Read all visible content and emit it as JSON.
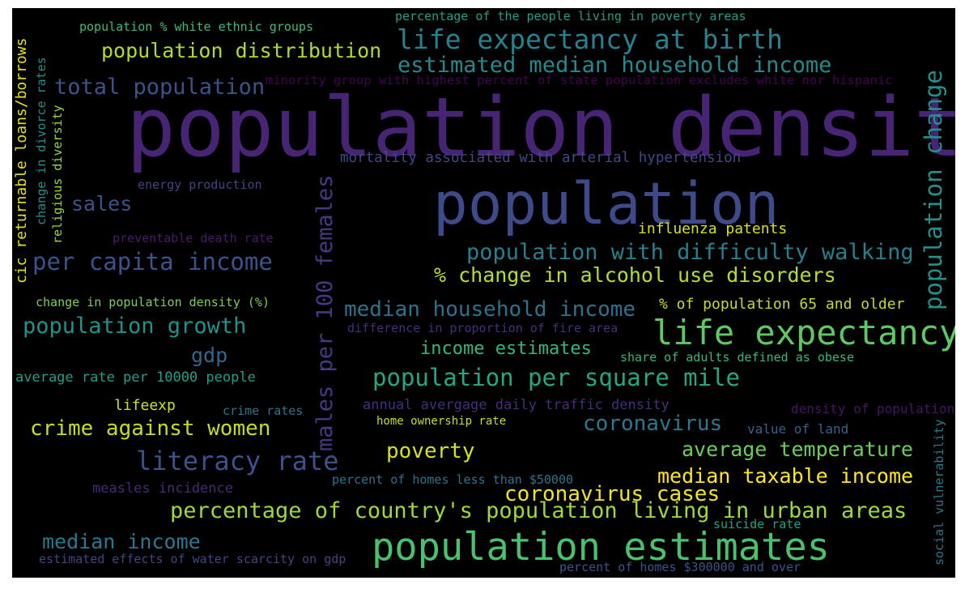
{
  "words": {
    "w01": "population density",
    "w02": "population",
    "w03": "population estimates",
    "w04": "life expectancy",
    "w05": "life expectancy at birth",
    "w06": "estimated median household income",
    "w07": "population distribution",
    "w08": "total population",
    "w09": "percentage of the people living in poverty areas",
    "w10": "population % white ethnic groups",
    "w11": "minority group with highest percent of state population excludes white nor hispanic",
    "w12": "mortality associated with arterial hypertension",
    "w13": "energy production",
    "w14": "sales",
    "w15": "influenza patents",
    "w16": "preventable death rate",
    "w17": "population with difficulty walking",
    "w18": "per capita income",
    "w19": "% change in alcohol use disorders",
    "w20": "change in population density (%)",
    "w21": "median household income",
    "w22": "% of population 65 and older",
    "w23": "population growth",
    "w24": "difference in proportion of fire area",
    "w25": "income estimates",
    "w26": "gdp",
    "w27": "share of adults defined as obese",
    "w28": "population per square mile",
    "w29": "average rate per 10000 people",
    "w30": "lifeexp",
    "w31": "crime rates",
    "w32": "annual avergage daily traffic density",
    "w33": "density of population",
    "w34": "home ownership rate",
    "w35": "crime against women",
    "w36": "coronavirus",
    "w37": "value of land",
    "w38": "poverty",
    "w39": "average temperature",
    "w40": "literacy rate",
    "w41": "median taxable income",
    "w42": "measles incidence",
    "w43": "percent of homes less than $50000",
    "w44": "coronavirus cases",
    "w45": "percentage of country's population living in urban areas",
    "w46": "median income",
    "w47": "suicide rate",
    "w48": "estimated effects of water scarcity on gdp",
    "w49": "percent of homes $300000 and over",
    "w50": "population change",
    "w51": "males per 100 females",
    "w52": "social vulnerability",
    "w53": "cic returnable loans/borrows",
    "w54": "change in divorce rates",
    "w55": "religious diversity"
  },
  "colors": {
    "background": "#000000",
    "w01": "#482475",
    "w02": "#3e4a89",
    "w03": "#4ac16d",
    "w04": "#5ec962",
    "w05": "#26828e",
    "w06": "#238a8d",
    "w07": "#addc30",
    "w08": "#3b528b",
    "w09": "#1f9e89",
    "w10": "#3dbc74",
    "w11": "#440154",
    "w12": "#3e4989",
    "w13": "#414487",
    "w14": "#3b528b",
    "w15": "#d8e219",
    "w16": "#481a6c",
    "w17": "#277f8e",
    "w18": "#3b528b",
    "w19": "#b5de2b",
    "w20": "#7ad151",
    "w21": "#2c728e",
    "w22": "#bddf26",
    "w23": "#21918c",
    "w24": "#472d7b",
    "w25": "#35b779",
    "w26": "#31688e",
    "w27": "#35b779",
    "w28": "#22a884",
    "w29": "#1f9e89",
    "w30": "#d0e11c",
    "w31": "#2c728e",
    "w32": "#472d7b",
    "w33": "#471365",
    "w34": "#c0df25",
    "w35": "#c2df23",
    "w36": "#2a788e",
    "w37": "#33638d",
    "w38": "#d5e21a",
    "w39": "#6ccd5a",
    "w40": "#3b528b",
    "w41": "#fde725",
    "w42": "#482878",
    "w43": "#2c728e",
    "w44": "#f1e51d",
    "w45": "#9bd93c",
    "w46": "#2a788e",
    "w47": "#1fa188",
    "w48": "#414487",
    "w49": "#3b528b",
    "w50": "#21918c",
    "w51": "#443983",
    "w52": "#2a788e",
    "w53": "#e5e419",
    "w54": "#228d8d",
    "w55": "#93d741"
  }
}
